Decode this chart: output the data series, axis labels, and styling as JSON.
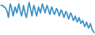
{
  "line_color": "#3a8fc7",
  "background_color": "#ffffff",
  "linewidth": 1.2,
  "y_values": [
    8,
    8,
    8,
    7,
    7,
    6,
    5,
    3,
    0,
    5,
    9,
    7,
    4,
    1,
    4,
    7,
    5,
    3,
    6,
    9,
    6,
    3,
    1,
    4,
    8,
    5,
    2,
    0,
    3,
    7,
    10,
    7,
    4,
    1,
    5,
    8,
    6,
    3,
    1,
    4,
    7,
    5,
    3,
    6,
    9,
    7,
    5,
    3,
    6,
    8,
    6,
    4,
    2,
    5,
    7,
    5,
    3,
    2,
    4,
    6,
    5,
    3,
    1,
    3,
    5,
    4,
    2,
    0,
    2,
    4,
    3,
    1,
    -1,
    1,
    3,
    2,
    0,
    -2,
    -1,
    1,
    -1,
    -3,
    -2,
    0,
    -2,
    -4,
    -3,
    -2,
    -4,
    -6,
    -5,
    -3,
    -5,
    -7,
    -6,
    -4,
    -6,
    -8,
    -9,
    -10
  ]
}
